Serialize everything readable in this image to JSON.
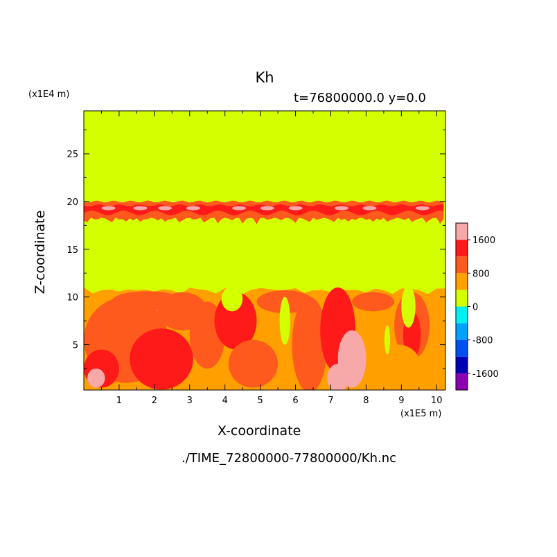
{
  "chart_data": {
    "type": "heatmap",
    "title": "Kh",
    "subtitle": "t=76800000.0 y=0.0",
    "xlabel": "X-coordinate",
    "ylabel": "Z-coordinate",
    "x_unit": "(x1E5 m)",
    "y_unit": "(x1E4 m)",
    "xlim": [
      0,
      10.25
    ],
    "ylim": [
      0.25,
      29.5
    ],
    "x_ticks": [
      1,
      2,
      3,
      4,
      5,
      6,
      7,
      8,
      9,
      10
    ],
    "y_ticks": [
      5,
      10,
      15,
      20,
      25
    ],
    "colorbar": {
      "ticks": [
        1600,
        800,
        0,
        -800,
        -1600
      ],
      "levels": [
        {
          "min": 1600,
          "max": 2000,
          "color": "#f7a9a9"
        },
        {
          "min": 1200,
          "max": 1600,
          "color": "#ff1a1a"
        },
        {
          "min": 800,
          "max": 1200,
          "color": "#ff5a1e"
        },
        {
          "min": 400,
          "max": 800,
          "color": "#ffa000"
        },
        {
          "min": 0,
          "max": 400,
          "color": "#d4ff00"
        },
        {
          "min": -400,
          "max": 0,
          "color": "#00f0f0"
        },
        {
          "min": -800,
          "max": -400,
          "color": "#00a0ff"
        },
        {
          "min": -1200,
          "max": -800,
          "color": "#0050f0"
        },
        {
          "min": -1600,
          "max": -1200,
          "color": "#0000b4"
        },
        {
          "min": -2000,
          "max": -1600,
          "color": "#8c00b4"
        }
      ]
    },
    "regions": {
      "upper_layer_z": [
        20,
        29.5
      ],
      "shear_band_z": [
        18,
        20
      ],
      "middle_layer_z": [
        11,
        18
      ],
      "lower_turbulent_z": [
        0.25,
        11
      ]
    }
  },
  "footer": "./TIME_72800000-77800000/Kh.nc"
}
